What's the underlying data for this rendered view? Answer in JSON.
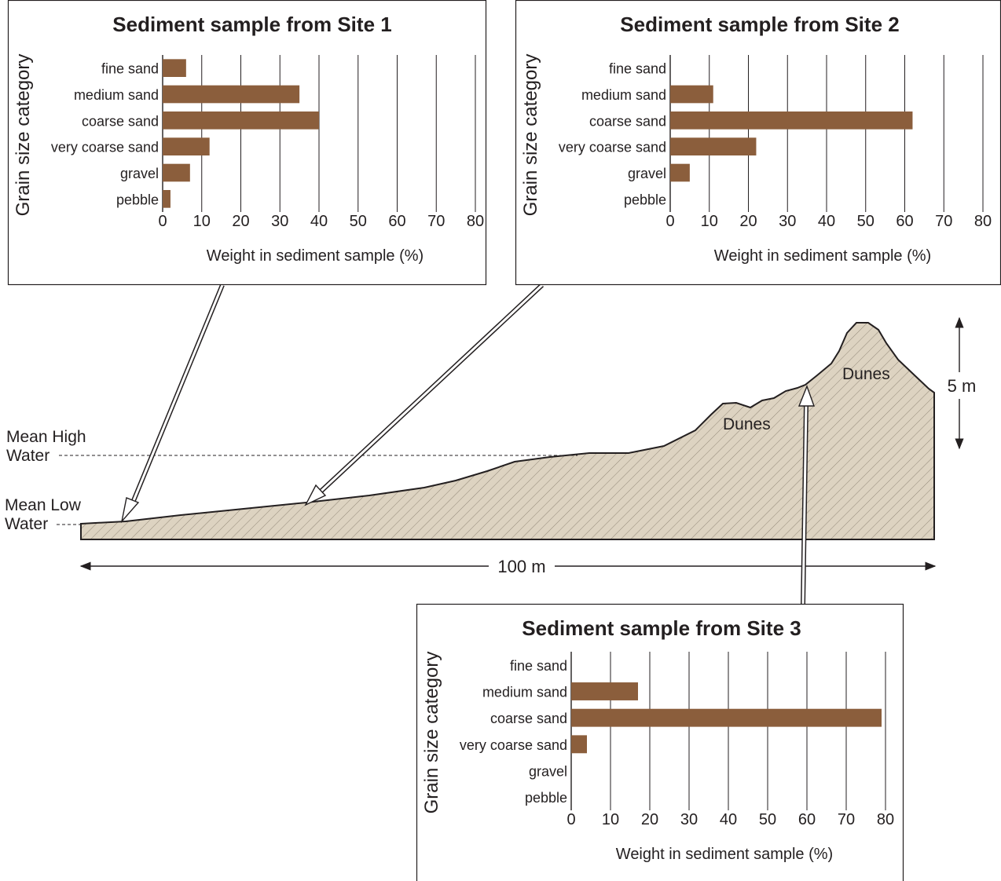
{
  "colors": {
    "bar": "#8b5e3c",
    "ground_fill": "#ddd3c1",
    "ground_hatch": "#8a8070",
    "ink": "#231f20"
  },
  "profile": {
    "mean_high_water": [
      "Mean High",
      "Water"
    ],
    "mean_low_water": [
      "Mean Low",
      "Water"
    ],
    "dunes_labels": [
      "Dunes",
      "Dunes"
    ],
    "width_label": "100 m",
    "height_label": "5 m"
  },
  "chart_data": [
    {
      "type": "bar",
      "orientation": "horizontal",
      "title": "Sediment sample from Site 1",
      "xlabel": "Weight in sediment sample (%)",
      "ylabel": "Grain size category",
      "categories": [
        "fine sand",
        "medium sand",
        "coarse sand",
        "very coarse sand",
        "gravel",
        "pebble"
      ],
      "values": [
        6,
        35,
        40,
        12,
        7,
        2
      ],
      "xticks": [
        "0",
        "10",
        "20",
        "30",
        "40",
        "50",
        "60",
        "70",
        "80"
      ],
      "xlim": [
        0,
        80
      ],
      "grid": true
    },
    {
      "type": "bar",
      "orientation": "horizontal",
      "title": "Sediment sample from Site 2",
      "xlabel": "Weight in sediment sample (%)",
      "ylabel": "Grain size category",
      "categories": [
        "fine sand",
        "medium sand",
        "coarse sand",
        "very coarse sand",
        "gravel",
        "pebble"
      ],
      "values": [
        0,
        11,
        62,
        22,
        5,
        0
      ],
      "xticks": [
        "0",
        "10",
        "20",
        "30",
        "40",
        "50",
        "60",
        "70",
        "80"
      ],
      "xlim": [
        0,
        80
      ],
      "grid": true
    },
    {
      "type": "bar",
      "orientation": "horizontal",
      "title": "Sediment sample from Site 3",
      "xlabel": "Weight in sediment sample (%)",
      "ylabel": "Grain size category",
      "categories": [
        "fine sand",
        "medium sand",
        "coarse sand",
        "very coarse sand",
        "gravel",
        "pebble"
      ],
      "values": [
        0,
        17,
        79,
        4,
        0,
        0
      ],
      "xticks": [
        "0",
        "10",
        "20",
        "30",
        "40",
        "50",
        "60",
        "70",
        "80"
      ],
      "xlim": [
        0,
        80
      ],
      "grid": true
    }
  ]
}
